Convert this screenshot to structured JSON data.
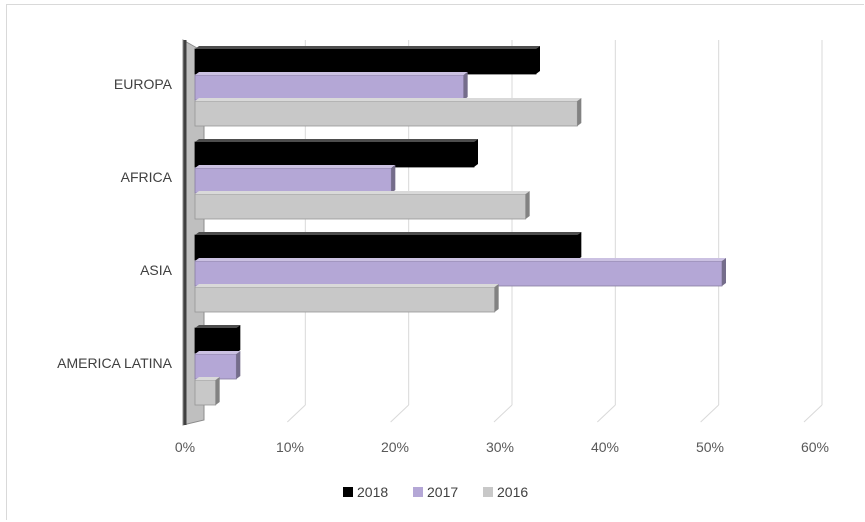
{
  "chart_data": {
    "type": "bar",
    "orientation": "horizontal",
    "categories": [
      "EUROPA",
      "AFRICA",
      "ASIA",
      "AMERICA LATINA"
    ],
    "series": [
      {
        "name": "2018",
        "color": "#000000",
        "values": [
          33,
          27,
          37,
          4
        ]
      },
      {
        "name": "2017",
        "color": "#b4a7d6",
        "values": [
          26,
          19,
          51,
          4
        ]
      },
      {
        "name": "2016",
        "color": "#c8c8c8",
        "values": [
          37,
          32,
          29,
          2
        ]
      }
    ],
    "x_ticks": [
      "0%",
      "10%",
      "20%",
      "30%",
      "40%",
      "50%",
      "60%"
    ],
    "xlim": [
      0,
      60
    ],
    "value_format": "percent",
    "grid": true,
    "legend_position": "bottom",
    "style": "3d"
  }
}
